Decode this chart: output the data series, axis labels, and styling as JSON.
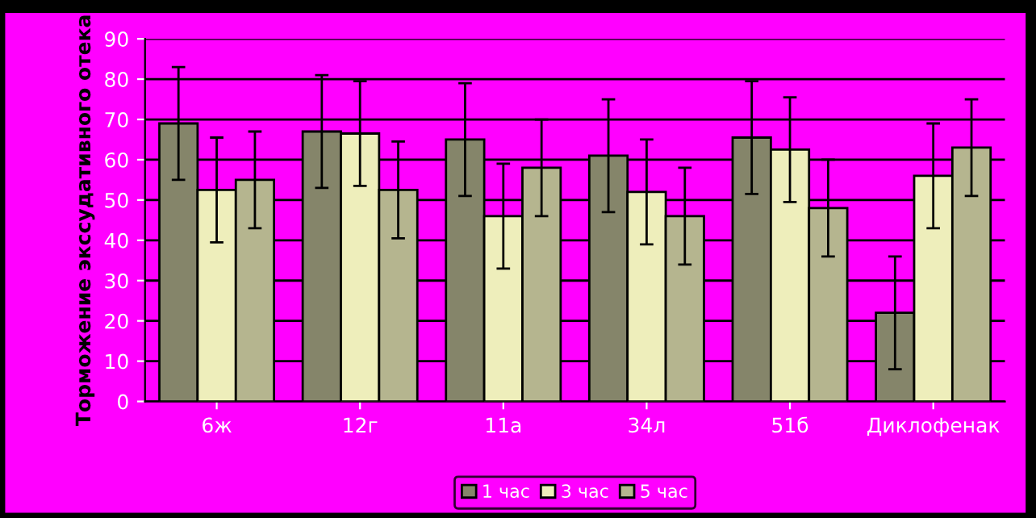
{
  "chart_data": {
    "type": "bar",
    "ylabel": "Торможение экссудативного отека",
    "categories": [
      "6ж",
      "12г",
      "11а",
      "34л",
      "51б",
      "Диклофенак"
    ],
    "series": [
      {
        "name": "1 час",
        "color": "#85856a",
        "values": [
          69,
          67,
          65,
          61,
          65.5,
          22
        ],
        "errors": [
          14,
          14,
          14,
          14,
          14,
          14
        ]
      },
      {
        "name": "3 час",
        "color": "#eeeebb",
        "values": [
          52.5,
          66.5,
          46,
          52,
          62.5,
          56
        ],
        "errors": [
          13,
          13,
          13,
          13,
          13,
          13
        ]
      },
      {
        "name": "5 час",
        "color": "#b5b58f",
        "values": [
          55,
          52.5,
          58,
          46,
          48,
          63
        ],
        "errors": [
          12,
          12,
          12,
          12,
          12,
          12
        ]
      }
    ],
    "ylim": [
      0,
      90
    ],
    "yticks": [
      0,
      10,
      20,
      30,
      40,
      50,
      60,
      70,
      80,
      90
    ],
    "grid": "y",
    "legend": "bottom"
  }
}
